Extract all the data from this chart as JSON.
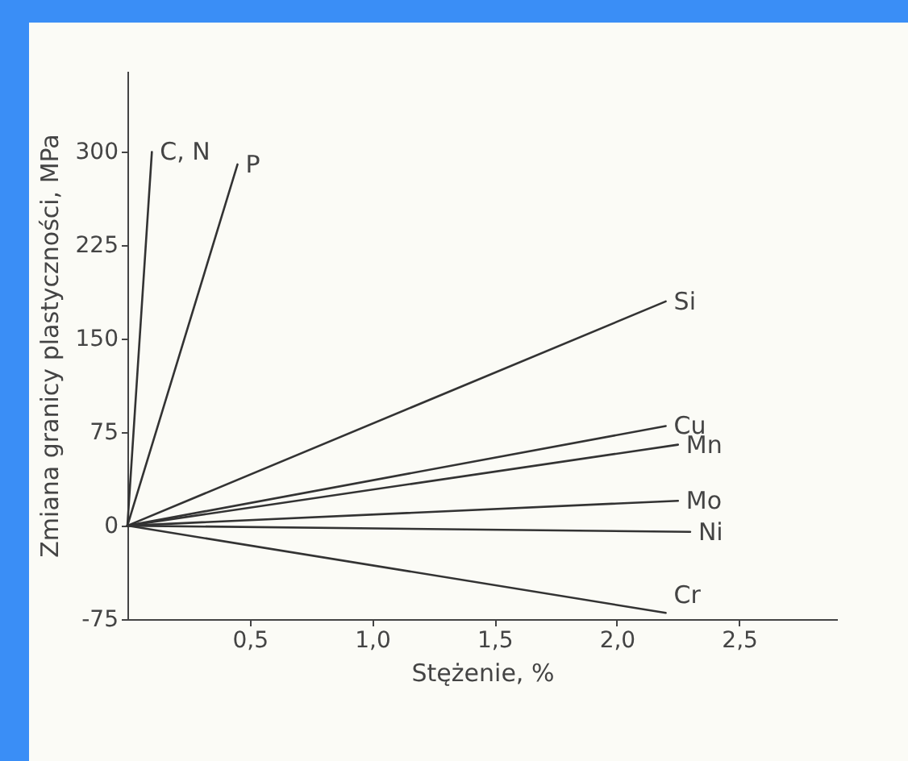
{
  "chart_data": {
    "type": "line",
    "xlabel": "Stężenie, %",
    "ylabel": "Zmiana granicy plastyczności, MPa",
    "xlim": [
      0,
      2.9
    ],
    "ylim": [
      -75,
      365
    ],
    "xticks": [
      {
        "value": 0.5,
        "label": "0,5"
      },
      {
        "value": 1.0,
        "label": "1,0"
      },
      {
        "value": 1.5,
        "label": "1,5"
      },
      {
        "value": 2.0,
        "label": "2,0"
      },
      {
        "value": 2.5,
        "label": "2,5"
      }
    ],
    "yticks": [
      -75,
      0,
      75,
      150,
      225,
      300
    ],
    "grid": false,
    "legend": false,
    "marker": "none",
    "line_style": "solid",
    "series": [
      {
        "name": "C, N",
        "color": "#333333",
        "x": [
          0,
          0.1
        ],
        "values": [
          0,
          300
        ]
      },
      {
        "name": "P",
        "color": "#333333",
        "x": [
          0,
          0.45
        ],
        "values": [
          0,
          290
        ]
      },
      {
        "name": "Si",
        "color": "#333333",
        "x": [
          0,
          2.2
        ],
        "values": [
          0,
          180
        ]
      },
      {
        "name": "Cu",
        "color": "#333333",
        "x": [
          0,
          2.2
        ],
        "values": [
          0,
          80
        ]
      },
      {
        "name": "Mn",
        "color": "#333333",
        "x": [
          0,
          2.25
        ],
        "values": [
          0,
          65
        ]
      },
      {
        "name": "Mo",
        "color": "#333333",
        "x": [
          0,
          2.25
        ],
        "values": [
          0,
          20
        ]
      },
      {
        "name": "Ni",
        "color": "#333333",
        "x": [
          0,
          2.3
        ],
        "values": [
          0,
          -5
        ]
      },
      {
        "name": "Cr",
        "color": "#333333",
        "x": [
          0,
          2.2
        ],
        "values": [
          0,
          -70
        ]
      }
    ]
  }
}
